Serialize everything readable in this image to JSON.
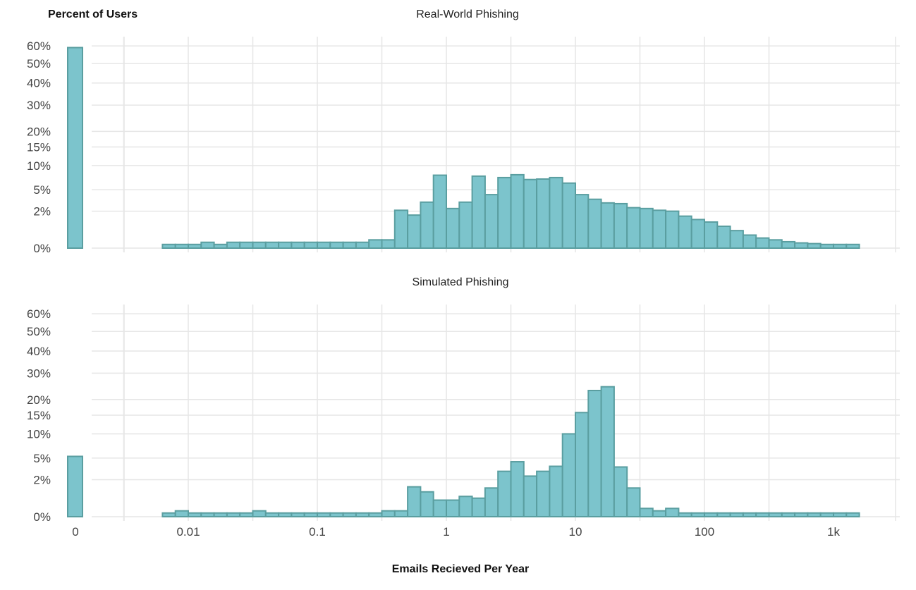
{
  "chart_data": {
    "type": "bar",
    "y_axis_title": "Percent of Users",
    "x_axis_title": "Emails Recieved Per Year",
    "y_scale": "sqrt",
    "y_ticks": [
      {
        "value": 0,
        "label": "0%"
      },
      {
        "value": 2,
        "label": "2%"
      },
      {
        "value": 5,
        "label": "5%"
      },
      {
        "value": 10,
        "label": "10%"
      },
      {
        "value": 15,
        "label": "15%"
      },
      {
        "value": 20,
        "label": "20%"
      },
      {
        "value": 30,
        "label": "30%"
      },
      {
        "value": 40,
        "label": "40%"
      },
      {
        "value": 50,
        "label": "50%"
      },
      {
        "value": 60,
        "label": "60%"
      }
    ],
    "x_scale": "log10",
    "x_ticks": [
      {
        "value": 0.01,
        "label": "0.01"
      },
      {
        "value": 0.1,
        "label": "0.1"
      },
      {
        "value": 1,
        "label": "1"
      },
      {
        "value": 10,
        "label": "10"
      },
      {
        "value": 100,
        "label": "100"
      },
      {
        "value": 1000,
        "label": "1k"
      }
    ],
    "zero_label": "0",
    "bin_edges_log10": [
      -2.2,
      -2.1,
      -2.0,
      -1.9,
      -1.8,
      -1.7,
      -1.6,
      -1.5,
      -1.4,
      -1.3,
      -1.2,
      -1.1,
      -1.0,
      -0.9,
      -0.8,
      -0.7,
      -0.6,
      -0.5,
      -0.4,
      -0.3,
      -0.2,
      -0.1,
      0.0,
      0.1,
      0.2,
      0.3,
      0.4,
      0.5,
      0.6,
      0.7,
      0.8,
      0.9,
      1.0,
      1.1,
      1.2,
      1.3,
      1.4,
      1.5,
      1.6,
      1.7,
      1.8,
      1.9,
      2.0,
      2.1,
      2.2,
      2.3,
      2.4,
      2.5,
      2.6,
      2.7,
      2.8,
      2.9,
      3.0,
      3.1,
      3.2
    ],
    "panels": [
      {
        "title": "Real-World Phishing",
        "zero_value": 59,
        "values": [
          0.02,
          0.02,
          0.02,
          0.05,
          0.02,
          0.05,
          0.05,
          0.05,
          0.05,
          0.05,
          0.05,
          0.05,
          0.05,
          0.05,
          0.05,
          0.05,
          0.1,
          0.1,
          2.1,
          1.6,
          3.1,
          7.8,
          2.3,
          3.1,
          7.6,
          4.2,
          7.3,
          7.9,
          6.9,
          7.0,
          7.3,
          6.2,
          4.2,
          3.5,
          3.0,
          2.9,
          2.4,
          2.3,
          2.1,
          2.0,
          1.5,
          1.2,
          1.0,
          0.7,
          0.45,
          0.25,
          0.15,
          0.1,
          0.06,
          0.04,
          0.03,
          0.02,
          0.02,
          0.02
        ]
      },
      {
        "title": "Simulated Phishing",
        "zero_value": 5.3,
        "values": [
          0.02,
          0.05,
          0.02,
          0.02,
          0.02,
          0.02,
          0.02,
          0.05,
          0.02,
          0.02,
          0.02,
          0.02,
          0.02,
          0.02,
          0.02,
          0.02,
          0.02,
          0.05,
          0.05,
          1.3,
          0.9,
          0.4,
          0.4,
          0.6,
          0.5,
          1.2,
          3.0,
          4.4,
          2.4,
          3.0,
          3.7,
          10.0,
          15.8,
          23.2,
          24.6,
          3.6,
          1.2,
          0.1,
          0.05,
          0.1,
          0.02,
          0.02,
          0.02,
          0.02,
          0.02,
          0.02,
          0.02,
          0.02,
          0.02,
          0.02,
          0.02,
          0.02,
          0.02,
          0.02
        ]
      }
    ]
  }
}
